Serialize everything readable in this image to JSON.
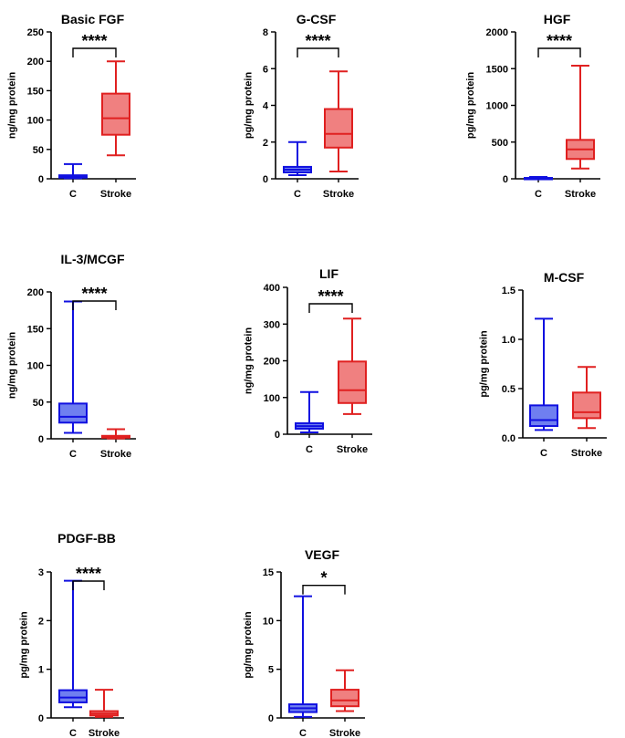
{
  "colors": {
    "control": "#1010e0",
    "control_fill": "#6f7ff0",
    "stroke": "#e02020",
    "stroke_fill": "#f08080",
    "axis": "#000000"
  },
  "chart_data": [
    {
      "type": "box",
      "title": "Basic FGF",
      "ylabel": "ng/mg protein",
      "categories": [
        "C",
        "Stroke"
      ],
      "ylim": [
        0,
        250
      ],
      "yticks": [
        0,
        50,
        100,
        150,
        200,
        250
      ],
      "ytick_labels": [
        "0",
        "50",
        "100",
        "150",
        "200",
        "250"
      ],
      "series": [
        {
          "name": "C",
          "min": 1,
          "q1": 2,
          "median": 4,
          "q3": 6,
          "max": 25
        },
        {
          "name": "Stroke",
          "min": 40,
          "q1": 75,
          "median": 103,
          "q3": 145,
          "max": 200
        }
      ],
      "significance": "****"
    },
    {
      "type": "box",
      "title": "G-CSF",
      "ylabel": "pg/mg protein",
      "categories": [
        "C",
        "Stroke"
      ],
      "ylim": [
        0,
        8
      ],
      "yticks": [
        0,
        2,
        4,
        6,
        8
      ],
      "ytick_labels": [
        "0",
        "2",
        "4",
        "6",
        "8"
      ],
      "series": [
        {
          "name": "C",
          "min": 0.2,
          "q1": 0.35,
          "median": 0.5,
          "q3": 0.65,
          "max": 2.0
        },
        {
          "name": "Stroke",
          "min": 0.4,
          "q1": 1.7,
          "median": 2.45,
          "q3": 3.8,
          "max": 5.85
        }
      ],
      "significance": "****"
    },
    {
      "type": "box",
      "title": "HGF",
      "ylabel": "pg/mg protein",
      "categories": [
        "C",
        "Stroke"
      ],
      "ylim": [
        0,
        2000
      ],
      "yticks": [
        0,
        500,
        1000,
        1500,
        2000
      ],
      "ytick_labels": [
        "0",
        "500",
        "1000",
        "1500",
        "2000"
      ],
      "series": [
        {
          "name": "C",
          "min": 2,
          "q1": 5,
          "median": 8,
          "q3": 12,
          "max": 25
        },
        {
          "name": "Stroke",
          "min": 140,
          "q1": 270,
          "median": 400,
          "q3": 530,
          "max": 1540
        }
      ],
      "significance": "****"
    },
    {
      "type": "box",
      "title": "IL-3/MCGF",
      "ylabel": "ng/mg protein",
      "categories": [
        "C",
        "Stroke"
      ],
      "ylim": [
        0,
        200
      ],
      "yticks": [
        0,
        50,
        100,
        150,
        200
      ],
      "ytick_labels": [
        "0",
        "50",
        "100",
        "150",
        "200"
      ],
      "series": [
        {
          "name": "C",
          "min": 8,
          "q1": 22,
          "median": 30,
          "q3": 48,
          "max": 187
        },
        {
          "name": "Stroke",
          "min": 0.5,
          "q1": 1.5,
          "median": 2.5,
          "q3": 4,
          "max": 13
        }
      ],
      "significance": "****"
    },
    {
      "type": "box",
      "title": "LIF",
      "ylabel": "ng/mg protein",
      "categories": [
        "C",
        "Stroke"
      ],
      "ylim": [
        0,
        400
      ],
      "yticks": [
        0,
        100,
        200,
        300,
        400
      ],
      "ytick_labels": [
        "0",
        "100",
        "200",
        "300",
        "400"
      ],
      "series": [
        {
          "name": "C",
          "min": 5,
          "q1": 15,
          "median": 22,
          "q3": 30,
          "max": 115
        },
        {
          "name": "Stroke",
          "min": 55,
          "q1": 85,
          "median": 120,
          "q3": 198,
          "max": 315
        }
      ],
      "significance": "****"
    },
    {
      "type": "box",
      "title": "M-CSF",
      "ylabel": "pg/mg protein",
      "categories": [
        "C",
        "Stroke"
      ],
      "ylim": [
        0,
        1.5
      ],
      "yticks": [
        0,
        0.5,
        1.0,
        1.5
      ],
      "ytick_labels": [
        "0.0",
        "0.5",
        "1.0",
        "1.5"
      ],
      "series": [
        {
          "name": "C",
          "min": 0.08,
          "q1": 0.12,
          "median": 0.18,
          "q3": 0.33,
          "max": 1.21
        },
        {
          "name": "Stroke",
          "min": 0.1,
          "q1": 0.2,
          "median": 0.26,
          "q3": 0.46,
          "max": 0.72
        }
      ],
      "significance": ""
    },
    {
      "type": "box",
      "title": "PDGF-BB",
      "ylabel": "pg/mg protein",
      "categories": [
        "C",
        "Stroke"
      ],
      "ylim": [
        0,
        3
      ],
      "yticks": [
        0,
        1,
        2,
        3
      ],
      "ytick_labels": [
        "0",
        "1",
        "2",
        "3"
      ],
      "series": [
        {
          "name": "C",
          "min": 0.22,
          "q1": 0.32,
          "median": 0.42,
          "q3": 0.57,
          "max": 2.82
        },
        {
          "name": "Stroke",
          "min": 0.02,
          "q1": 0.05,
          "median": 0.09,
          "q3": 0.14,
          "max": 0.58
        }
      ],
      "significance": "****"
    },
    {
      "type": "box",
      "title": "VEGF",
      "ylabel": "pg/mg protein",
      "categories": [
        "C",
        "Stroke"
      ],
      "ylim": [
        0,
        15
      ],
      "yticks": [
        0,
        5,
        10,
        15
      ],
      "ytick_labels": [
        "0",
        "5",
        "10",
        "15"
      ],
      "series": [
        {
          "name": "C",
          "min": 0.1,
          "q1": 0.6,
          "median": 1.0,
          "q3": 1.4,
          "max": 12.5
        },
        {
          "name": "Stroke",
          "min": 0.7,
          "q1": 1.2,
          "median": 1.8,
          "q3": 2.9,
          "max": 4.9
        }
      ],
      "significance": "*"
    }
  ]
}
